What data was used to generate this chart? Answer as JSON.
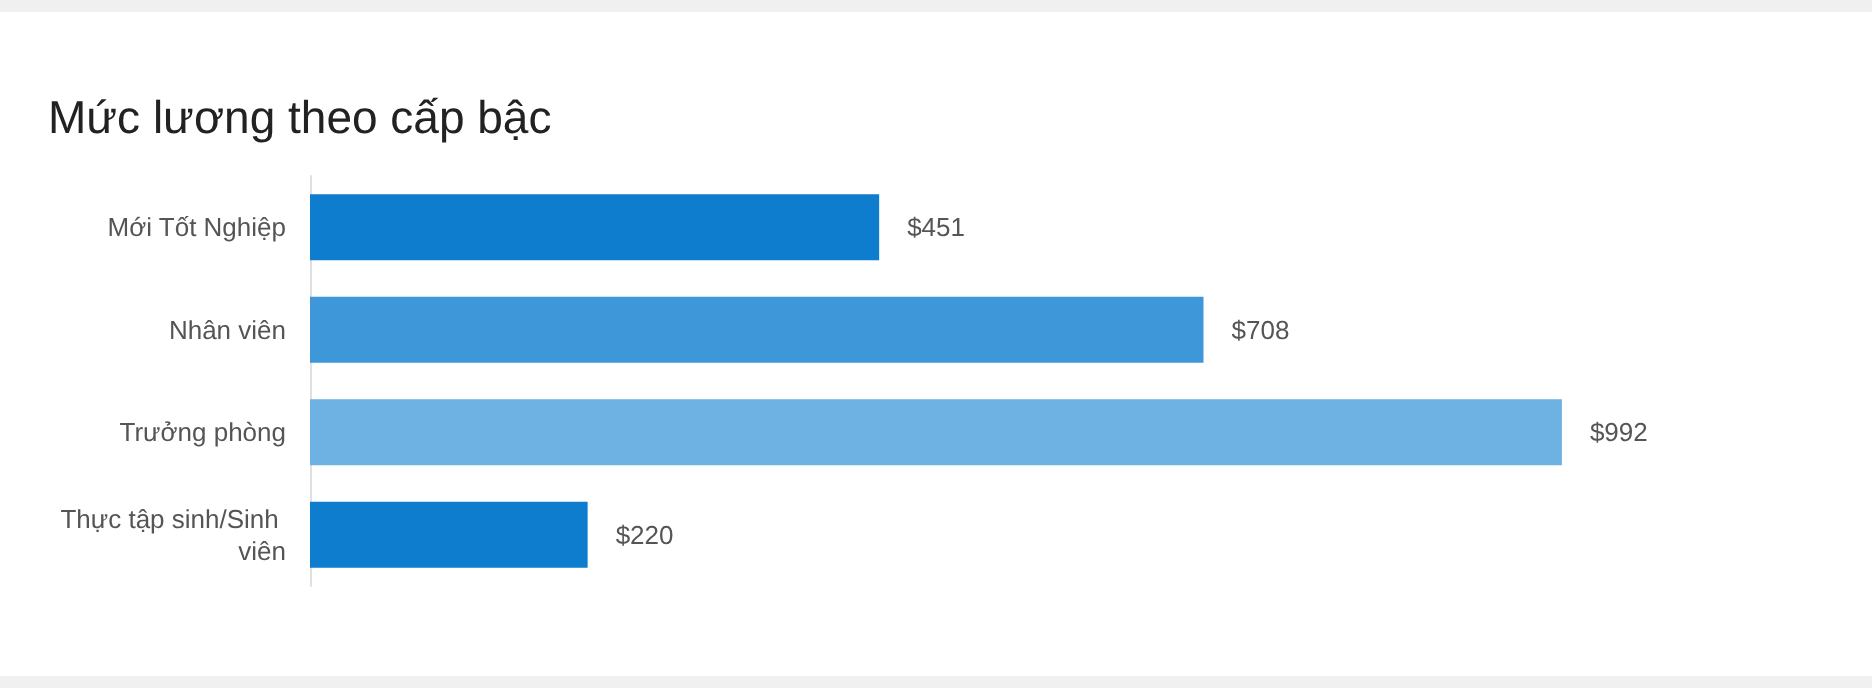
{
  "chart_data": {
    "type": "bar",
    "title": "Mức lương theo cấp bậc",
    "orientation": "horizontal",
    "categories": [
      "Mới Tốt Nghiệp",
      "Nhân viên",
      "Trưởng phòng",
      "Thực tập sinh/Sinh viên"
    ],
    "values": [
      451,
      708,
      992,
      220
    ],
    "colors": [
      "#0e7dce",
      "#3d97d9",
      "#6eb1e3",
      "#0e7dce"
    ],
    "value_labels": [
      "$451",
      "$708",
      "$992",
      "$220"
    ],
    "tick_labels": "y",
    "grid": false
  }
}
